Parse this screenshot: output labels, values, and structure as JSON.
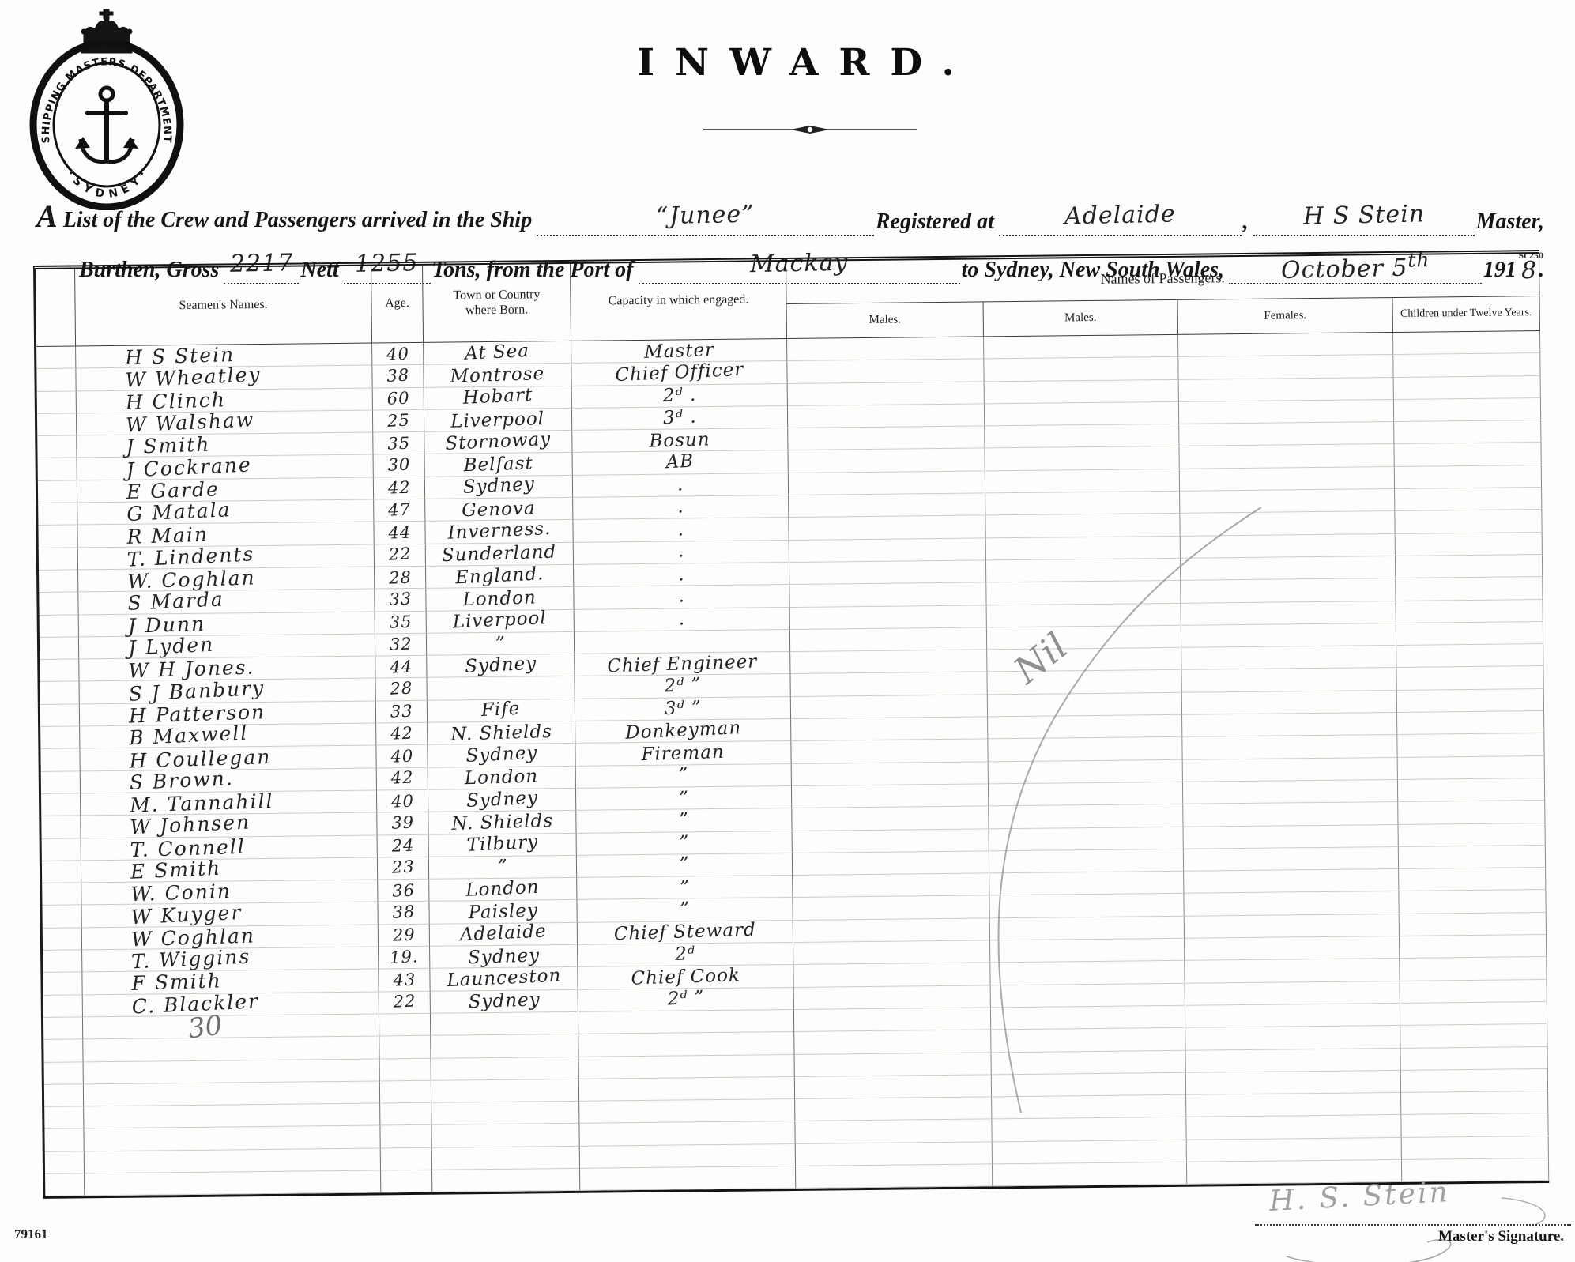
{
  "seal": {
    "text_top": "SHIPPING MASTERS DEPARTMENT",
    "text_bottom": "· S Y D N E Y ·",
    "icon": "anchor-and-crown"
  },
  "title": "INWARD.",
  "form": {
    "line1": {
      "lead": "A List of the Crew and Passengers arrived in the Ship",
      "ship_name": "“Junee”",
      "registered_label": "Registered at",
      "registered_at": "Adelaide",
      "comma": ",",
      "master_name": "H S Stein",
      "master_label": "Master,"
    },
    "line2": {
      "burthen_label": "Burthen, Gross",
      "gross": "2217",
      "nett_label": "Nett",
      "nett": "1255",
      "tons_label": "Tons, from the Port of",
      "port": "Mackay",
      "to_label": "to Sydney, New South Wales,",
      "date": "October 5",
      "date_suffix": "th",
      "year_printed": "191",
      "year_digit": "8",
      "period": "."
    },
    "form_number": "St 250"
  },
  "table": {
    "headers": {
      "seamen": "Seamen's Names.",
      "age": "Age.",
      "town": "Town or Country where Born.",
      "capacity": "Capacity in which engaged.",
      "passengers_group": "Names of Passengers.",
      "males1": "Males.",
      "males2": "Males.",
      "females": "Females.",
      "children": "Children under Twelve Years."
    },
    "rows": [
      {
        "name": "H S Stein",
        "age": "40",
        "town": "At Sea",
        "capacity": "Master"
      },
      {
        "name": "W Wheatley",
        "age": "38",
        "town": "Montrose",
        "capacity": "Chief Officer"
      },
      {
        "name": "H Clinch",
        "age": "60",
        "town": "Hobart",
        "capacity": "2ᵈ  ."
      },
      {
        "name": "W Walshaw",
        "age": "25",
        "town": "Liverpool",
        "capacity": "3ᵈ  ."
      },
      {
        "name": "J Smith",
        "age": "35",
        "town": "Stornoway",
        "capacity": "Bosun"
      },
      {
        "name": "J Cockrane",
        "age": "30",
        "town": "Belfast",
        "capacity": "AB"
      },
      {
        "name": "E Garde",
        "age": "42",
        "town": "Sydney",
        "capacity": "."
      },
      {
        "name": "G Matala",
        "age": "47",
        "town": "Genova",
        "capacity": "."
      },
      {
        "name": "R Main",
        "age": "44",
        "town": "Inverness.",
        "capacity": "."
      },
      {
        "name": "T. Lindents",
        "age": "22",
        "town": "Sunderland",
        "capacity": "."
      },
      {
        "name": "W. Coghlan",
        "age": "28",
        "town": "England.",
        "capacity": "."
      },
      {
        "name": "S Marda",
        "age": "33",
        "town": "London",
        "capacity": "."
      },
      {
        "name": "J Dunn",
        "age": "35",
        "town": "Liverpool",
        "capacity": "."
      },
      {
        "name": "J Lyden",
        "age": "32",
        "town": "”",
        "capacity": ""
      },
      {
        "name": "W H Jones.",
        "age": "44",
        "town": "Sydney",
        "capacity": "Chief Engineer"
      },
      {
        "name": "S J Banbury",
        "age": "28",
        "town": "",
        "capacity": "2ᵈ  ”"
      },
      {
        "name": "H Patterson",
        "age": "33",
        "town": "Fife",
        "capacity": "3ᵈ  ”"
      },
      {
        "name": "B Maxwell",
        "age": "42",
        "town": "N. Shields",
        "capacity": "Donkeyman"
      },
      {
        "name": "H Coullegan",
        "age": "40",
        "town": "Sydney",
        "capacity": "Fireman"
      },
      {
        "name": "S Brown.",
        "age": "42",
        "town": "London",
        "capacity": "”"
      },
      {
        "name": "M. Tannahill",
        "age": "40",
        "town": "Sydney",
        "capacity": "”"
      },
      {
        "name": "W Johnsen",
        "age": "39",
        "town": "N. Shields",
        "capacity": "”"
      },
      {
        "name": "T. Connell",
        "age": "24",
        "town": "Tilbury",
        "capacity": "”"
      },
      {
        "name": "E Smith",
        "age": "23",
        "town": "”",
        "capacity": "”"
      },
      {
        "name": "W. Conin",
        "age": "36",
        "town": "London",
        "capacity": "”"
      },
      {
        "name": "W Kuyger",
        "age": "38",
        "town": "Paisley",
        "capacity": "”"
      },
      {
        "name": "W Coghlan",
        "age": "29",
        "town": "Adelaide",
        "capacity": "Chief Steward"
      },
      {
        "name": "T. Wiggins",
        "age": "19.",
        "town": "Sydney",
        "capacity": "2ᵈ"
      },
      {
        "name": "F Smith",
        "age": "43",
        "town": "Launceston",
        "capacity": "Chief Cook"
      },
      {
        "name": "C. Blackler",
        "age": "22",
        "town": "Sydney",
        "capacity": "2ᵈ  ”"
      }
    ],
    "annotations": {
      "nil_note": "Nil",
      "crew_tally": "30"
    }
  },
  "footer": {
    "serial": "79161",
    "signature": "H. S. Stein",
    "signature_label": "Master's Signature."
  }
}
